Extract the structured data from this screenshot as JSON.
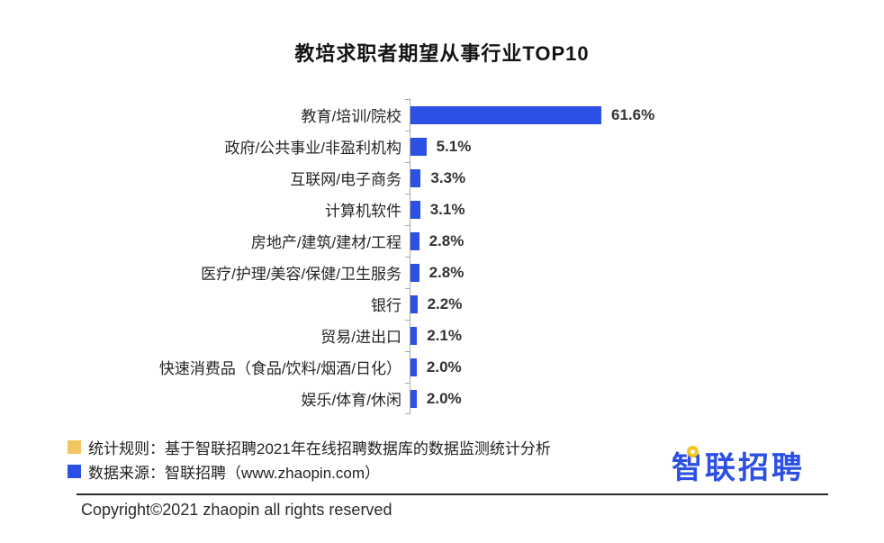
{
  "title": "教培求职者期望从事行业TOP10",
  "chart_data": {
    "type": "bar",
    "orientation": "horizontal",
    "title": "教培求职者期望从事行业TOP10",
    "categories": [
      "教育/培训/院校",
      "政府/公共事业/非盈利机构",
      "互联网/电子商务",
      "计算机软件",
      "房地产/建筑/建材/工程",
      "医疗/护理/美容/保健/卫生服务",
      "银行",
      "贸易/进出口",
      "快速消费品（食品/饮料/烟酒/日化）",
      "娱乐/体育/休闲"
    ],
    "values": [
      61.6,
      5.1,
      3.3,
      3.1,
      2.8,
      2.8,
      2.2,
      2.1,
      2.0,
      2.0
    ],
    "value_labels": [
      "61.6%",
      "5.1%",
      "3.3%",
      "3.1%",
      "2.8%",
      "2.8%",
      "2.2%",
      "2.1%",
      "2.0%",
      "2.0%"
    ],
    "unit": "%",
    "xlim": [
      0,
      65
    ],
    "grid": false,
    "legend_position": "none",
    "bar_color": "#2B50E3",
    "axis_color": "#a8a8a8",
    "value_label_position": "end-of-bar"
  },
  "footnotes": [
    {
      "swatch_color": "#EFC75E",
      "text": "统计规则：基于智联招聘2021年在线招聘数据库的数据监测统计分析"
    },
    {
      "swatch_color": "#2B50E3",
      "text": "数据来源：智联招聘（www.zhaopin.com）"
    }
  ],
  "logo": {
    "text": "智联招聘",
    "accent": "yellow-circle-icon"
  },
  "copyright": "Copyright©2021 zhaopin all rights reserved",
  "colors": {
    "bar_blue": "#2B50E3",
    "legend_yellow": "#EFC75E",
    "logo_blue": "#2B50E3",
    "logo_yellow": "#F5C51C",
    "text_dark": "#222222"
  }
}
